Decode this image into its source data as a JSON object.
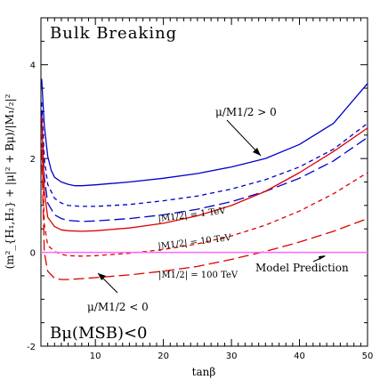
{
  "chart_data": {
    "type": "line",
    "title": "Bulk Breaking",
    "xlabel": "tanβ",
    "ylabel": "(m²_{H₁,H₂} + |μ|² + Bμ)/|M₁/₂|²",
    "xlim": [
      2,
      50
    ],
    "ylim": [
      -2,
      5
    ],
    "xticks": [
      10,
      20,
      30,
      40,
      50
    ],
    "yticks": [
      -2,
      0,
      2,
      4
    ],
    "grid": false,
    "series": [
      {
        "name": "μ/M1/2 > 0, |M1/2| = 1 TeV",
        "color": "#0000cc",
        "dash": "solid",
        "x": [
          2.1,
          2.5,
          3,
          3.5,
          4,
          5,
          6,
          7,
          8,
          10,
          15,
          20,
          25,
          30,
          35,
          40,
          45,
          50
        ],
        "y": [
          3.7,
          2.7,
          2.05,
          1.75,
          1.6,
          1.5,
          1.45,
          1.42,
          1.42,
          1.44,
          1.5,
          1.58,
          1.68,
          1.82,
          2.0,
          2.3,
          2.75,
          3.6
        ]
      },
      {
        "name": "μ/M1/2 > 0, |M1/2| = 10 TeV",
        "color": "#0000cc",
        "dash": "short",
        "x": [
          2.1,
          2.5,
          3,
          4,
          5,
          6,
          8,
          10,
          15,
          20,
          25,
          30,
          35,
          40,
          45,
          50
        ],
        "y": [
          3.2,
          2.0,
          1.45,
          1.15,
          1.05,
          1.0,
          0.98,
          0.98,
          1.02,
          1.1,
          1.2,
          1.35,
          1.55,
          1.82,
          2.2,
          2.75
        ]
      },
      {
        "name": "μ/M1/2 > 0, |M1/2| = 100 TeV",
        "color": "#0000cc",
        "dash": "long",
        "x": [
          2.1,
          2.5,
          3,
          4,
          5,
          6,
          8,
          10,
          15,
          20,
          25,
          30,
          35,
          40,
          45,
          50
        ],
        "y": [
          3.0,
          1.6,
          1.05,
          0.8,
          0.72,
          0.68,
          0.66,
          0.67,
          0.72,
          0.8,
          0.92,
          1.08,
          1.3,
          1.58,
          1.95,
          2.45
        ]
      },
      {
        "name": "μ/M1/2 < 0, |M1/2| = 1 TeV",
        "color": "#dd0000",
        "dash": "solid",
        "x": [
          2.1,
          2.5,
          3,
          4,
          5,
          6,
          8,
          10,
          15,
          20,
          25,
          30,
          35,
          40,
          45,
          50
        ],
        "y": [
          2.9,
          1.3,
          0.75,
          0.55,
          0.48,
          0.46,
          0.45,
          0.46,
          0.52,
          0.62,
          0.78,
          1.0,
          1.3,
          1.7,
          2.15,
          2.65
        ]
      },
      {
        "name": "μ/M1/2 < 0, |M1/2| = 10 TeV",
        "color": "#dd0000",
        "dash": "short",
        "x": [
          2.1,
          2.5,
          3,
          4,
          5,
          6,
          8,
          10,
          15,
          20,
          25,
          30,
          35,
          40,
          45,
          50
        ],
        "y": [
          2.5,
          0.6,
          0.15,
          0.02,
          -0.04,
          -0.07,
          -0.08,
          -0.07,
          -0.02,
          0.06,
          0.18,
          0.35,
          0.58,
          0.88,
          1.25,
          1.7
        ]
      },
      {
        "name": "μ/M1/2 < 0, |M1/2| = 100 TeV",
        "color": "#dd0000",
        "dash": "long",
        "x": [
          2.1,
          2.5,
          3,
          4,
          5,
          6,
          8,
          10,
          15,
          20,
          25,
          30,
          35,
          40,
          45,
          50
        ],
        "y": [
          2.2,
          0.0,
          -0.4,
          -0.55,
          -0.58,
          -0.58,
          -0.56,
          -0.54,
          -0.48,
          -0.4,
          -0.3,
          -0.15,
          0.02,
          0.22,
          0.45,
          0.72
        ]
      },
      {
        "name": "Model Prediction",
        "color": "#ff66ff",
        "dash": "solid",
        "x": [
          2,
          50
        ],
        "y": [
          0,
          0
        ]
      }
    ],
    "annotations": {
      "mu_pos": "μ/M1/2 > 0",
      "mu_neg": "μ/M1/2 < 0",
      "m1": "|M1/2| = 1 TeV",
      "m10": "|M1/2| = 10 TeV",
      "m100": "|M1/2| = 100 TeV",
      "model": "Model Prediction",
      "condition": "Bμ(MSB)<0"
    }
  }
}
